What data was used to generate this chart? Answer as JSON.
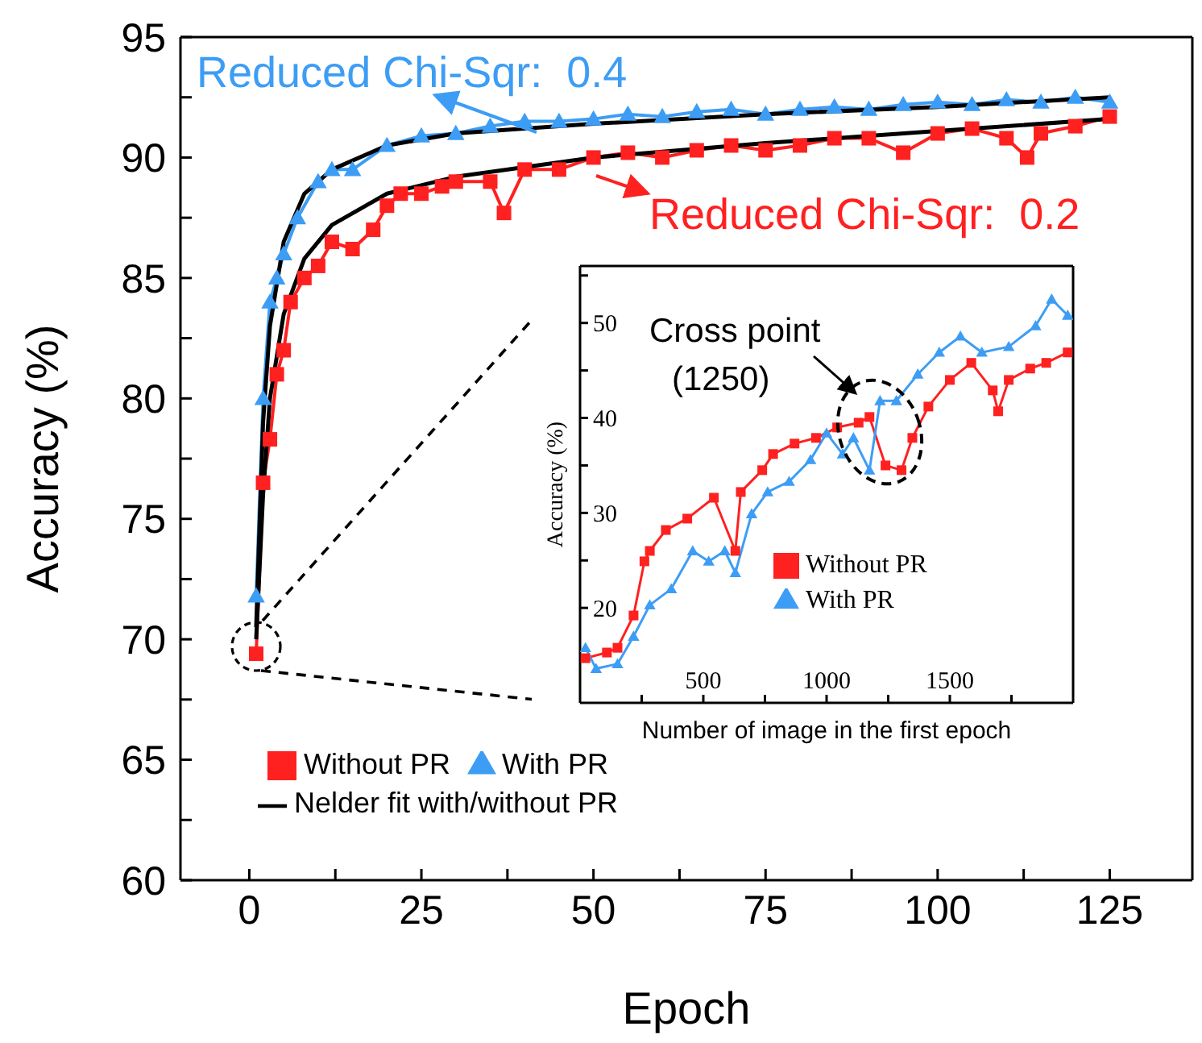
{
  "chart_data": [
    {
      "type": "line",
      "xlabel": "Epoch",
      "ylabel": "Accuracy (%)",
      "xlim": [
        -10,
        137
      ],
      "xticks": [
        0,
        {
          "value": 12.5,
          "label": null
        },
        25,
        {
          "value": 37.5,
          "label": null
        },
        50,
        {
          "value": 62.5,
          "label": null
        },
        75,
        {
          "value": 87.5,
          "label": null
        },
        100,
        {
          "value": 112.5,
          "label": null
        },
        125
      ],
      "ylim": [
        60,
        95
      ],
      "yticks": [
        60,
        {
          "value": 62.5,
          "label": null
        },
        65,
        {
          "value": 67.5,
          "label": null
        },
        70,
        {
          "value": 72.5,
          "label": null
        },
        75,
        {
          "value": 77.5,
          "label": null
        },
        80,
        {
          "value": 82.5,
          "label": null
        },
        85,
        {
          "value": 87.5,
          "label": null
        },
        90,
        {
          "value": 92.5,
          "label": null
        },
        95
      ],
      "legend": "bottom left",
      "annotations": [
        "Reduced Chi-Sqr:  0.4",
        "Reduced Chi-Sqr:  0.2"
      ],
      "series": [
        {
          "name": "Without PR",
          "color": "#ff2020",
          "marker": "square",
          "x": [
            1,
            2,
            3,
            4,
            5,
            6,
            8,
            10,
            12,
            15,
            18,
            20,
            22,
            25,
            28,
            30,
            35,
            37,
            40,
            45,
            50,
            55,
            60,
            65,
            70,
            75,
            80,
            85,
            90,
            95,
            100,
            105,
            110,
            113,
            115,
            120,
            125
          ],
          "values": [
            69.4,
            76.5,
            78.3,
            81,
            82,
            84,
            85,
            85.5,
            86.5,
            86.2,
            87,
            88,
            88.5,
            88.5,
            88.8,
            89,
            89,
            87.7,
            89.5,
            89.5,
            90,
            90.2,
            90,
            90.3,
            90.5,
            90.3,
            90.5,
            90.8,
            90.8,
            90.2,
            91,
            91.2,
            90.8,
            90,
            91,
            91.3,
            91.7
          ]
        },
        {
          "name": "With PR",
          "color": "#3d9df5",
          "marker": "triangle",
          "x": [
            1,
            2,
            3,
            4,
            5,
            7,
            10,
            12,
            15,
            20,
            25,
            30,
            35,
            40,
            45,
            50,
            55,
            60,
            65,
            70,
            75,
            80,
            85,
            90,
            95,
            100,
            105,
            110,
            115,
            120,
            125
          ],
          "values": [
            71.8,
            80,
            84,
            85,
            86,
            87.5,
            89,
            89.5,
            89.5,
            90.5,
            90.9,
            91,
            91.3,
            91.5,
            91.5,
            91.6,
            91.8,
            91.7,
            91.9,
            92,
            91.8,
            92,
            92.1,
            92,
            92.2,
            92.3,
            92.2,
            92.4,
            92.3,
            92.5,
            92.3
          ]
        },
        {
          "name": "Nelder fit with/without PR",
          "color": "#000000",
          "marker": "none",
          "x": [
            1,
            2,
            3,
            5,
            8,
            12,
            20,
            30,
            50,
            75,
            100,
            125
          ],
          "values": [
            70.5,
            79,
            83,
            86.5,
            88.5,
            89.5,
            90.5,
            91,
            91.4,
            91.8,
            92.1,
            92.5
          ]
        },
        {
          "color": "#000000",
          "marker": "none",
          "x": [
            1,
            2,
            3,
            5,
            8,
            12,
            20,
            30,
            50,
            75,
            100,
            125
          ],
          "values": [
            70,
            76,
            80,
            83.5,
            85.8,
            87.2,
            88.5,
            89.2,
            90,
            90.6,
            91.1,
            91.6
          ]
        }
      ]
    },
    {
      "type": "line",
      "xlabel": "Number of image in the first epoch",
      "ylabel": "Accuracy (%)",
      "xlim": [
        0,
        2000
      ],
      "xticks": [
        {
          "value": 250,
          "label": null
        },
        500,
        {
          "value": 750,
          "label": null
        },
        1000,
        {
          "value": 1250,
          "label": null
        },
        1500,
        {
          "value": 1750,
          "label": null
        }
      ],
      "ylim": [
        10,
        56
      ],
      "yticks": [
        {
          "value": 15,
          "label": null
        },
        20,
        {
          "value": 25,
          "label": null
        },
        30,
        {
          "value": 35,
          "label": null
        },
        40,
        {
          "value": 45,
          "label": null
        },
        50,
        {
          "value": 55,
          "label": null
        }
      ],
      "legend": "bottom right",
      "annotations": [
        "Cross point",
        "(1250)"
      ],
      "series": [
        {
          "name": "Without PR",
          "color": "#ff2020",
          "marker": "square",
          "x": [
            22,
            109,
            152,
            217,
            261,
            283,
            348,
            435,
            543,
            630,
            652,
            739,
            783,
            870,
            957,
            1043,
            1130,
            1174,
            1239,
            1304,
            1348,
            1413,
            1500,
            1587,
            1674,
            1696,
            1739,
            1826,
            1891,
            1978
          ],
          "values": [
            14.7,
            15.3,
            15.8,
            19.2,
            24.9,
            26,
            28.2,
            29.4,
            31.6,
            26,
            32.2,
            34.5,
            36.2,
            37.3,
            37.9,
            39,
            39.5,
            40.1,
            35,
            34.5,
            37.9,
            41.2,
            44,
            45.8,
            42.9,
            40.7,
            44,
            45.2,
            45.8,
            46.9
          ]
        },
        {
          "name": "With PR",
          "color": "#3d9df5",
          "marker": "triangle",
          "x": [
            22,
            65,
            152,
            217,
            283,
            370,
            457,
            522,
            587,
            630,
            696,
            761,
            848,
            935,
            1000,
            1065,
            1109,
            1174,
            1217,
            1283,
            1370,
            1457,
            1543,
            1630,
            1739,
            1848,
            1913,
            1978
          ],
          "values": [
            15.8,
            13.6,
            14.1,
            17,
            20.3,
            22,
            26,
            24.9,
            26,
            23.7,
            29.9,
            32.2,
            33.3,
            35.6,
            38.4,
            36.2,
            37.9,
            34.5,
            41.8,
            41.8,
            44.6,
            46.9,
            48.6,
            46.9,
            47.5,
            49.7,
            52.5,
            50.8
          ]
        }
      ]
    }
  ]
}
